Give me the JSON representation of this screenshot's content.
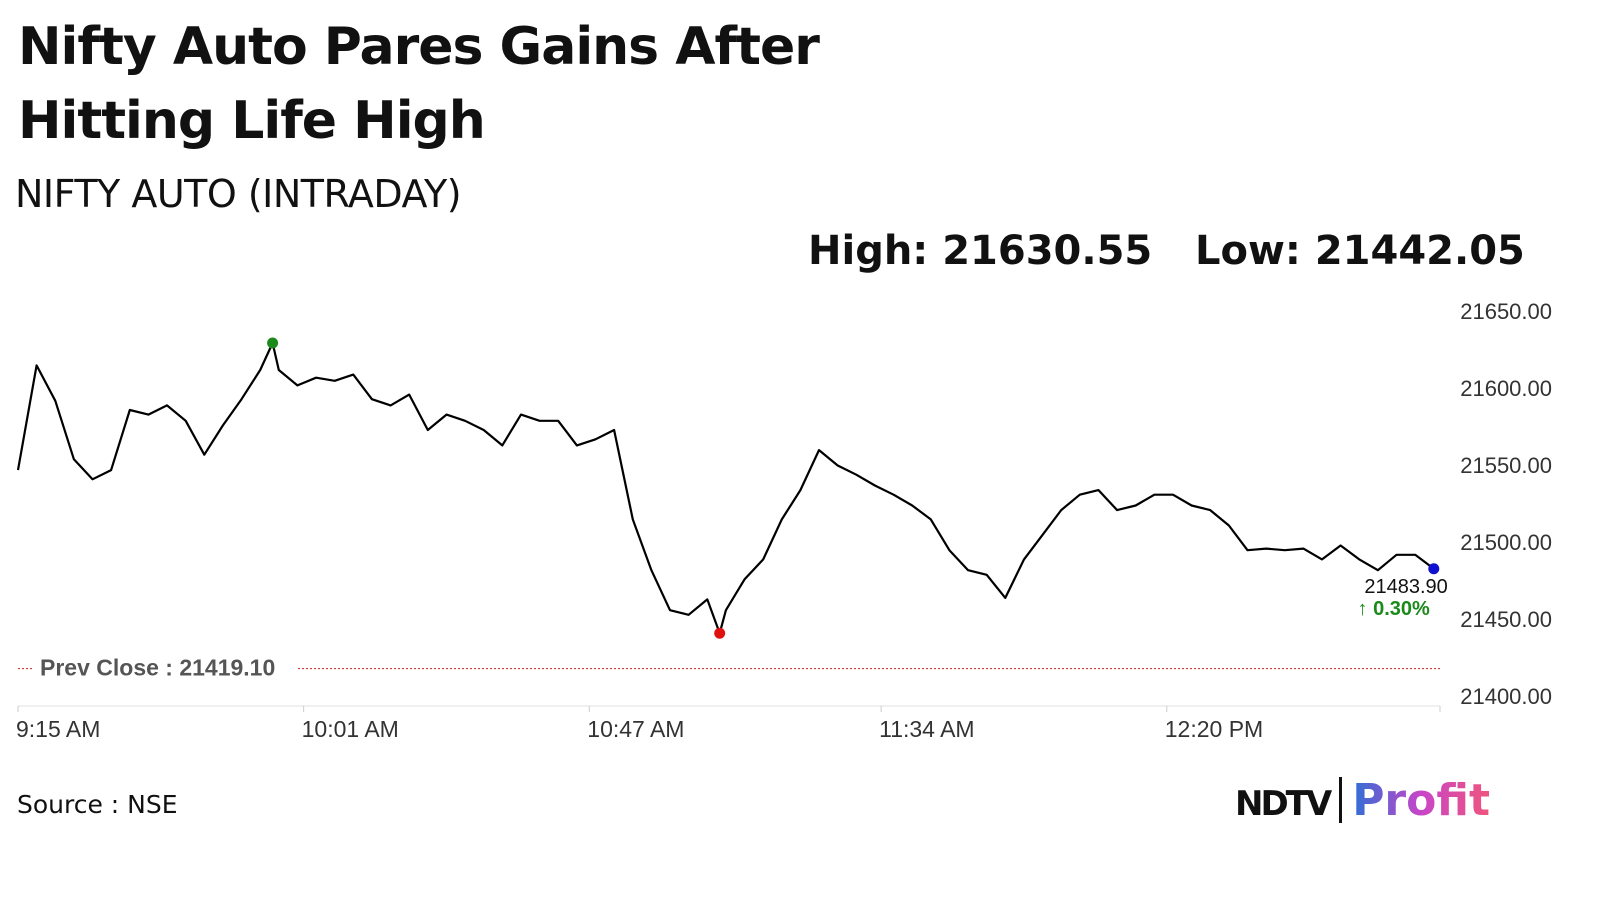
{
  "chart_data": {
    "type": "line",
    "title": "Nifty Auto Pares Gains After Hitting Life High",
    "subtitle": "NIFTY AUTO (INTRADAY)",
    "high_label": "High: 21630.55",
    "low_label": "Low: 21442.05",
    "prev_close": 21419.1,
    "prev_close_label": "Prev Close : 21419.10",
    "last_value_label": "21483.90",
    "change": {
      "value": 0.3,
      "label": "↑ 0.30%"
    },
    "source": "Source : NSE",
    "logo": {
      "left": "NDTV",
      "right": "Profit"
    },
    "x": [
      "9:15 AM",
      "9:18 AM",
      "9:21 AM",
      "9:24 AM",
      "9:27 AM",
      "9:30 AM",
      "9:33 AM",
      "9:36 AM",
      "9:39 AM",
      "9:42 AM",
      "9:45 AM",
      "9:48 AM",
      "9:51 AM",
      "9:54 AM",
      "9:56 AM",
      "9:57 AM",
      "10:00 AM",
      "10:03 AM",
      "10:06 AM",
      "10:09 AM",
      "10:12 AM",
      "10:15 AM",
      "10:18 AM",
      "10:21 AM",
      "10:24 AM",
      "10:27 AM",
      "10:30 AM",
      "10:33 AM",
      "10:36 AM",
      "10:39 AM",
      "10:42 AM",
      "10:45 AM",
      "10:48 AM",
      "10:51 AM",
      "10:54 AM",
      "10:57 AM",
      "11:00 AM",
      "11:03 AM",
      "11:06 AM",
      "11:08 AM",
      "11:09 AM",
      "11:12 AM",
      "11:15 AM",
      "11:18 AM",
      "11:21 AM",
      "11:24 AM",
      "11:27 AM",
      "11:30 AM",
      "11:33 AM",
      "11:36 AM",
      "11:39 AM",
      "11:42 AM",
      "11:45 AM",
      "11:48 AM",
      "11:51 AM",
      "11:54 AM",
      "11:57 AM",
      "12:00 PM",
      "12:03 PM",
      "12:06 PM",
      "12:09 PM",
      "12:12 PM",
      "12:15 PM",
      "12:18 PM",
      "12:21 PM",
      "12:24 PM",
      "12:27 PM",
      "12:30 PM",
      "12:33 PM",
      "12:36 PM",
      "12:39 PM",
      "12:42 PM",
      "12:45 PM",
      "12:48 PM",
      "12:51 PM",
      "12:54 PM",
      "12:57 PM",
      "1:00 PM",
      "1:03 PM"
    ],
    "series": [
      {
        "name": "NIFTY AUTO",
        "color": "#000000",
        "values": [
          21548,
          21616,
          21593,
          21555,
          21542,
          21548,
          21587,
          21584,
          21590,
          21580,
          21558,
          21577,
          21594,
          21613,
          21630.55,
          21613,
          21603,
          21608,
          21606,
          21610,
          21594,
          21590,
          21597,
          21574,
          21584,
          21580,
          21574,
          21564,
          21584,
          21580,
          21580,
          21564,
          21568,
          21574,
          21516,
          21483,
          21457,
          21454,
          21464,
          21442.05,
          21457,
          21477,
          21490,
          21516,
          21535,
          21561,
          21551,
          21545,
          21538,
          21532,
          21525,
          21516,
          21496,
          21483,
          21480,
          21465,
          21490,
          21506,
          21522,
          21532,
          21535,
          21522,
          21525,
          21532,
          21532,
          21525,
          21522,
          21512,
          21496,
          21497,
          21496,
          21497,
          21490,
          21499,
          21490,
          21483,
          21493,
          21493,
          21483.9
        ]
      }
    ],
    "marker_colors": {
      "high": "#1a8a1a",
      "low": "#e01010",
      "last": "#1010d0"
    },
    "prev_close_color": "#d02020",
    "change_color": "#1a8a1a",
    "xlim": [
      "9:15 AM",
      "1:04 PM"
    ],
    "xticks": [
      "9:15 AM",
      "10:01 AM",
      "10:47 AM",
      "11:34 AM",
      "12:20 PM"
    ],
    "ylim": [
      21400,
      21650
    ],
    "yticks": [
      {
        "value": 21400,
        "label": "21400.00"
      },
      {
        "value": 21450,
        "label": "21450.00"
      },
      {
        "value": 21500,
        "label": "21500.00"
      },
      {
        "value": 21550,
        "label": "21550.00"
      },
      {
        "value": 21600,
        "label": "21600.00"
      },
      {
        "value": 21650,
        "label": "21650.00"
      }
    ],
    "grid": false
  }
}
